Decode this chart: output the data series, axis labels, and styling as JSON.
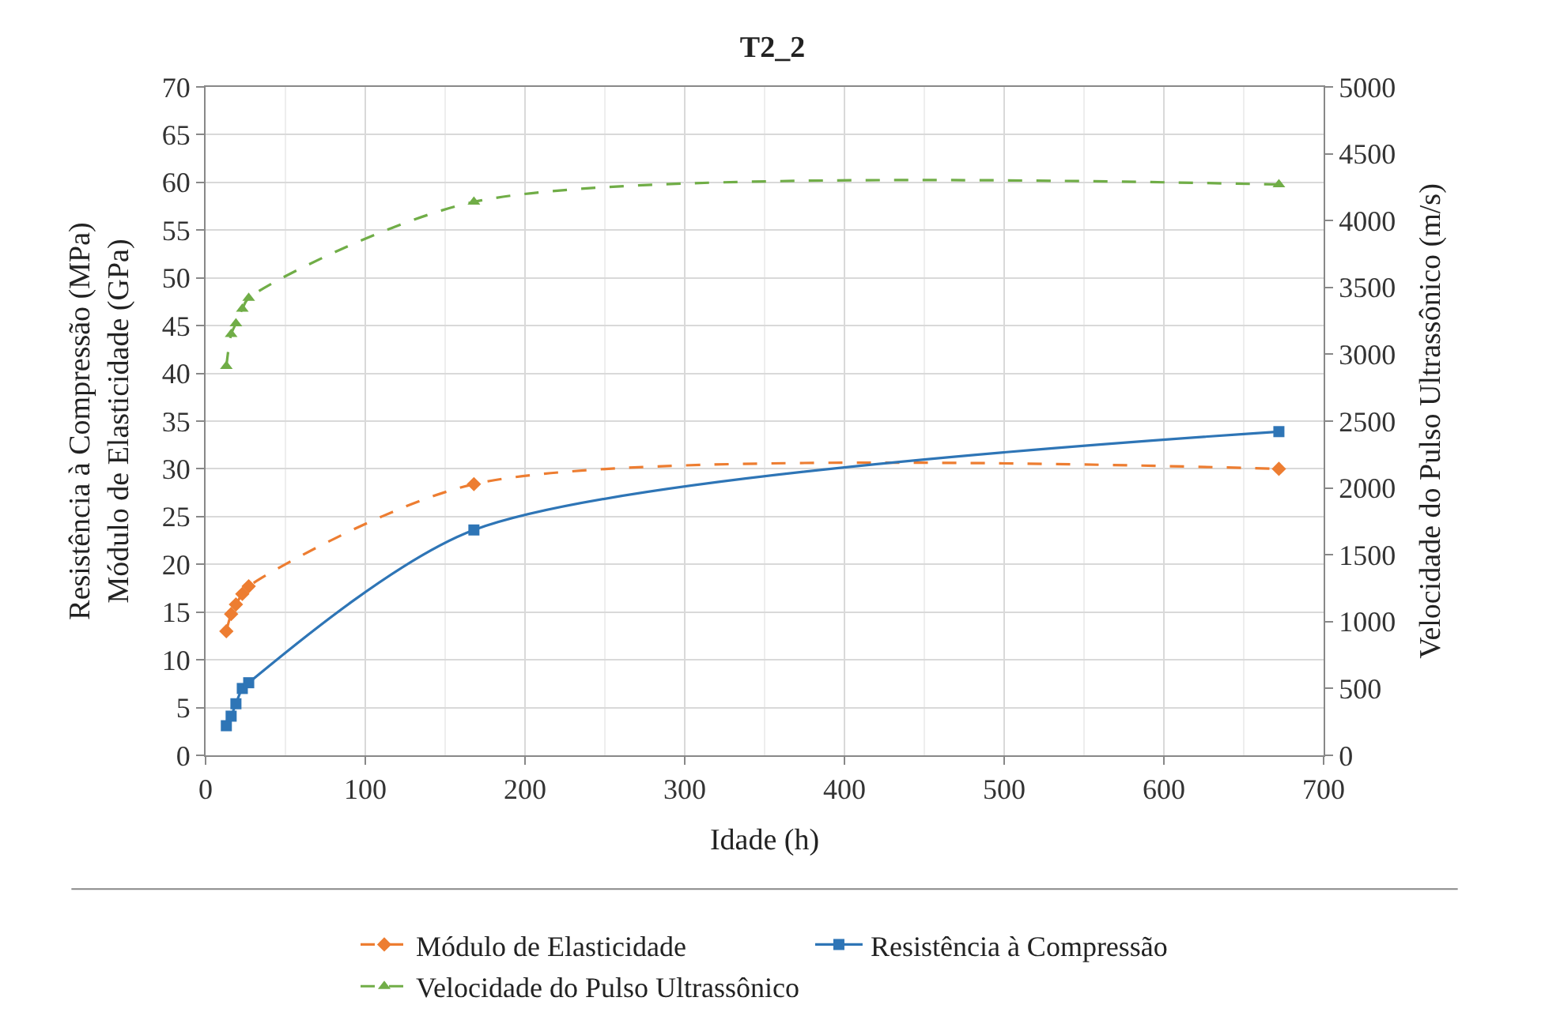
{
  "chart_data": {
    "type": "line",
    "title": "T2_2",
    "xlabel": "Idade (h)",
    "ylabel": "Resistência à Compressão (MPa)\nMódulo de Elasticidade (GPa)",
    "y2label": "Velocidade do Pulso Ultrassônico (m/s)",
    "xlim": [
      0,
      700
    ],
    "xticks": [
      0,
      100,
      200,
      300,
      400,
      500,
      600,
      700
    ],
    "ylim": [
      0,
      70
    ],
    "yticks": [
      0,
      5,
      10,
      15,
      20,
      25,
      30,
      35,
      40,
      45,
      50,
      55,
      60,
      65,
      70
    ],
    "y2lim": [
      0,
      5000
    ],
    "y2ticks": [
      0,
      500,
      1000,
      1500,
      2000,
      2500,
      3000,
      3500,
      4000,
      4500,
      5000
    ],
    "grid": true,
    "legend": "bottom",
    "series": [
      {
        "name": "Módulo de Elasticidade",
        "color": "#ed7d31",
        "marker": "diamond",
        "line_style": "dashed",
        "x": [
          13,
          16,
          19,
          23,
          27,
          168,
          672
        ],
        "values": [
          13.0,
          14.8,
          15.8,
          16.9,
          17.7,
          28.4,
          30.0
        ]
      },
      {
        "name": "Resistência à Compressão",
        "color": "#2e75b6",
        "marker": "square",
        "line_style": "solid",
        "x": [
          13,
          16,
          19,
          23,
          27,
          168,
          672
        ],
        "values": [
          3.1,
          4.1,
          5.4,
          7.0,
          7.6,
          23.6,
          33.9
        ]
      },
      {
        "name": "Velocidade do Pulso Ultrassônico",
        "color": "#70ad47",
        "marker": "triangle",
        "line_style": "dashed",
        "axis": "y2",
        "x": [
          13,
          16,
          19,
          23,
          27,
          168,
          672
        ],
        "values": [
          2910,
          3150,
          3230,
          3340,
          3420,
          4140,
          4270
        ]
      }
    ]
  }
}
